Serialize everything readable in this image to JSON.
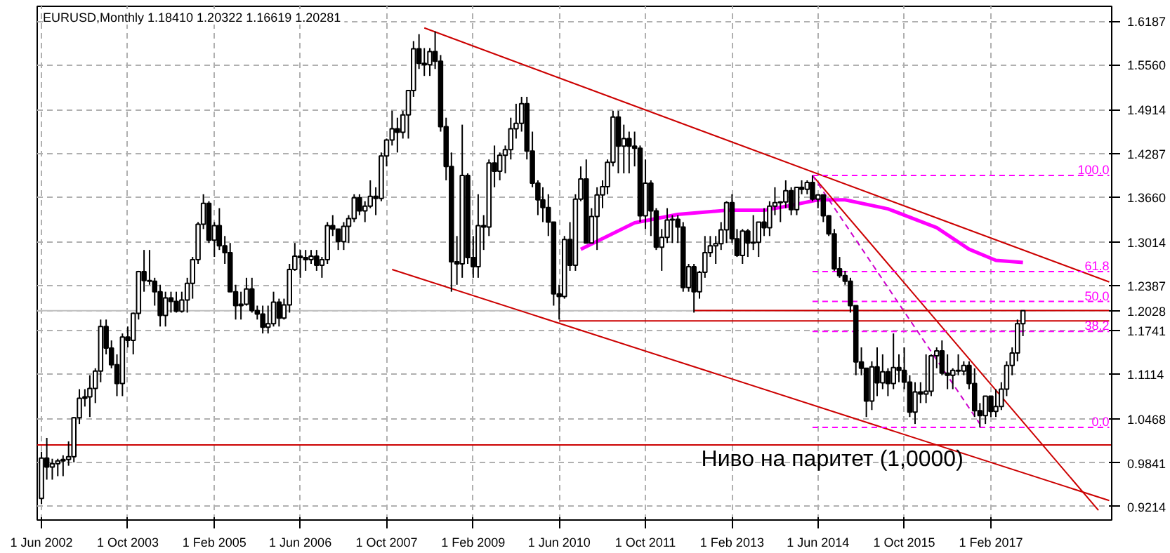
{
  "chart_data": {
    "type": "candlestick",
    "title": "EURUSD,Monthly  1.18410 1.20322 1.16619 1.20281",
    "x": [
      "2002-06",
      "2002-07",
      "2002-08",
      "2002-09",
      "2002-10",
      "2002-11",
      "2002-12",
      "2003-01",
      "2003-02",
      "2003-03",
      "2003-04",
      "2003-05",
      "2003-06",
      "2003-07",
      "2003-08",
      "2003-09",
      "2003-10",
      "2003-11",
      "2003-12",
      "2004-01",
      "2004-02",
      "2004-03",
      "2004-04",
      "2004-05",
      "2004-06",
      "2004-07",
      "2004-08",
      "2004-09",
      "2004-10",
      "2004-11",
      "2004-12",
      "2005-01",
      "2005-02",
      "2005-03",
      "2005-04",
      "2005-05",
      "2005-06",
      "2005-07",
      "2005-08",
      "2005-09",
      "2005-10",
      "2005-11",
      "2005-12",
      "2006-01",
      "2006-02",
      "2006-03",
      "2006-04",
      "2006-05",
      "2006-06",
      "2006-07",
      "2006-08",
      "2006-09",
      "2006-10",
      "2006-11",
      "2006-12",
      "2007-01",
      "2007-02",
      "2007-03",
      "2007-04",
      "2007-05",
      "2007-06",
      "2007-07",
      "2007-08",
      "2007-09",
      "2007-10",
      "2007-11",
      "2007-12",
      "2008-01",
      "2008-02",
      "2008-03",
      "2008-04",
      "2008-05",
      "2008-06",
      "2008-07",
      "2008-08",
      "2008-09",
      "2008-10",
      "2008-11",
      "2008-12",
      "2009-01",
      "2009-02",
      "2009-03",
      "2009-04",
      "2009-05",
      "2009-06",
      "2009-07",
      "2009-08",
      "2009-09",
      "2009-10",
      "2009-11",
      "2009-12",
      "2010-01",
      "2010-02",
      "2010-03",
      "2010-04",
      "2010-05",
      "2010-06",
      "2010-07",
      "2010-08",
      "2010-09",
      "2010-10",
      "2010-11",
      "2010-12",
      "2011-01",
      "2011-02",
      "2011-03",
      "2011-04",
      "2011-05",
      "2011-06",
      "2011-07",
      "2011-08",
      "2011-09",
      "2011-10",
      "2011-11",
      "2011-12",
      "2012-01",
      "2012-02",
      "2012-03",
      "2012-04",
      "2012-05",
      "2012-06",
      "2012-07",
      "2012-08",
      "2012-09",
      "2012-10",
      "2012-11",
      "2012-12",
      "2013-01",
      "2013-02",
      "2013-03",
      "2013-04",
      "2013-05",
      "2013-06",
      "2013-07",
      "2013-08",
      "2013-09",
      "2013-10",
      "2013-11",
      "2013-12",
      "2014-01",
      "2014-02",
      "2014-03",
      "2014-04",
      "2014-05",
      "2014-06",
      "2014-07",
      "2014-08",
      "2014-09",
      "2014-10",
      "2014-11",
      "2014-12",
      "2015-01",
      "2015-02",
      "2015-03",
      "2015-04",
      "2015-05",
      "2015-06",
      "2015-07",
      "2015-08",
      "2015-09",
      "2015-10",
      "2015-11",
      "2015-12",
      "2016-01",
      "2016-02",
      "2016-03",
      "2016-04",
      "2016-05",
      "2016-06",
      "2016-07",
      "2016-08",
      "2016-09",
      "2016-10",
      "2016-11",
      "2016-12",
      "2017-01",
      "2017-02",
      "2017-03",
      "2017-04",
      "2017-05",
      "2017-06",
      "2017-07",
      "2017-08"
    ],
    "ohlc": [
      [
        0.933,
        1.0,
        0.925,
        0.991
      ],
      [
        0.991,
        1.02,
        0.96,
        0.978
      ],
      [
        0.978,
        0.99,
        0.96,
        0.983
      ],
      [
        0.983,
        0.99,
        0.965,
        0.987
      ],
      [
        0.987,
        0.995,
        0.965,
        0.989
      ],
      [
        0.989,
        1.015,
        0.98,
        0.993
      ],
      [
        0.993,
        1.05,
        0.985,
        1.049
      ],
      [
        1.049,
        1.09,
        1.04,
        1.077
      ],
      [
        1.077,
        1.09,
        1.065,
        1.079
      ],
      [
        1.079,
        1.11,
        1.05,
        1.091
      ],
      [
        1.091,
        1.12,
        1.07,
        1.116
      ],
      [
        1.116,
        1.19,
        1.1,
        1.18
      ],
      [
        1.18,
        1.19,
        1.14,
        1.149
      ],
      [
        1.149,
        1.16,
        1.12,
        1.125
      ],
      [
        1.125,
        1.14,
        1.08,
        1.098
      ],
      [
        1.098,
        1.17,
        1.08,
        1.165
      ],
      [
        1.165,
        1.18,
        1.15,
        1.16
      ],
      [
        1.16,
        1.2,
        1.14,
        1.199
      ],
      [
        1.199,
        1.26,
        1.19,
        1.259
      ],
      [
        1.259,
        1.29,
        1.23,
        1.246
      ],
      [
        1.246,
        1.29,
        1.24,
        1.245
      ],
      [
        1.245,
        1.25,
        1.21,
        1.23
      ],
      [
        1.23,
        1.24,
        1.18,
        1.196
      ],
      [
        1.196,
        1.23,
        1.18,
        1.221
      ],
      [
        1.221,
        1.23,
        1.2,
        1.216
      ],
      [
        1.216,
        1.23,
        1.2,
        1.202
      ],
      [
        1.202,
        1.23,
        1.2,
        1.218
      ],
      [
        1.218,
        1.25,
        1.2,
        1.242
      ],
      [
        1.242,
        1.28,
        1.22,
        1.276
      ],
      [
        1.276,
        1.33,
        1.27,
        1.327
      ],
      [
        1.327,
        1.37,
        1.32,
        1.357
      ],
      [
        1.357,
        1.36,
        1.3,
        1.304
      ],
      [
        1.304,
        1.33,
        1.28,
        1.325
      ],
      [
        1.325,
        1.35,
        1.29,
        1.296
      ],
      [
        1.296,
        1.31,
        1.27,
        1.286
      ],
      [
        1.286,
        1.3,
        1.23,
        1.23
      ],
      [
        1.23,
        1.24,
        1.19,
        1.21
      ],
      [
        1.21,
        1.23,
        1.19,
        1.212
      ],
      [
        1.212,
        1.25,
        1.21,
        1.234
      ],
      [
        1.234,
        1.25,
        1.2,
        1.203
      ],
      [
        1.203,
        1.21,
        1.19,
        1.198
      ],
      [
        1.198,
        1.21,
        1.17,
        1.179
      ],
      [
        1.179,
        1.21,
        1.17,
        1.184
      ],
      [
        1.184,
        1.23,
        1.18,
        1.215
      ],
      [
        1.215,
        1.22,
        1.18,
        1.192
      ],
      [
        1.192,
        1.22,
        1.19,
        1.211
      ],
      [
        1.211,
        1.27,
        1.2,
        1.262
      ],
      [
        1.262,
        1.3,
        1.26,
        1.281
      ],
      [
        1.281,
        1.29,
        1.25,
        1.279
      ],
      [
        1.279,
        1.29,
        1.26,
        1.276
      ],
      [
        1.276,
        1.29,
        1.27,
        1.281
      ],
      [
        1.281,
        1.29,
        1.26,
        1.268
      ],
      [
        1.268,
        1.28,
        1.25,
        1.276
      ],
      [
        1.276,
        1.33,
        1.27,
        1.325
      ],
      [
        1.325,
        1.34,
        1.31,
        1.32
      ],
      [
        1.32,
        1.32,
        1.29,
        1.302
      ],
      [
        1.302,
        1.33,
        1.29,
        1.324
      ],
      [
        1.324,
        1.34,
        1.3,
        1.335
      ],
      [
        1.335,
        1.37,
        1.33,
        1.365
      ],
      [
        1.365,
        1.37,
        1.34,
        1.346
      ],
      [
        1.346,
        1.36,
        1.33,
        1.353
      ],
      [
        1.353,
        1.39,
        1.35,
        1.367
      ],
      [
        1.367,
        1.38,
        1.34,
        1.364
      ],
      [
        1.364,
        1.43,
        1.36,
        1.425
      ],
      [
        1.425,
        1.45,
        1.41,
        1.448
      ],
      [
        1.448,
        1.49,
        1.44,
        1.464
      ],
      [
        1.464,
        1.48,
        1.43,
        1.459
      ],
      [
        1.459,
        1.49,
        1.45,
        1.484
      ],
      [
        1.484,
        1.52,
        1.45,
        1.519
      ],
      [
        1.519,
        1.59,
        1.51,
        1.579
      ],
      [
        1.579,
        1.6,
        1.55,
        1.558
      ],
      [
        1.558,
        1.58,
        1.54,
        1.556
      ],
      [
        1.556,
        1.58,
        1.54,
        1.575
      ],
      [
        1.575,
        1.604,
        1.55,
        1.561
      ],
      [
        1.561,
        1.57,
        1.46,
        1.467
      ],
      [
        1.467,
        1.48,
        1.39,
        1.41
      ],
      [
        1.41,
        1.43,
        1.23,
        1.273
      ],
      [
        1.273,
        1.31,
        1.24,
        1.27
      ],
      [
        1.27,
        1.47,
        1.25,
        1.397
      ],
      [
        1.397,
        1.4,
        1.27,
        1.279
      ],
      [
        1.279,
        1.31,
        1.25,
        1.266
      ],
      [
        1.266,
        1.37,
        1.25,
        1.325
      ],
      [
        1.325,
        1.34,
        1.29,
        1.323
      ],
      [
        1.323,
        1.42,
        1.31,
        1.415
      ],
      [
        1.415,
        1.44,
        1.38,
        1.403
      ],
      [
        1.403,
        1.43,
        1.39,
        1.426
      ],
      [
        1.426,
        1.44,
        1.4,
        1.434
      ],
      [
        1.434,
        1.48,
        1.42,
        1.464
      ],
      [
        1.464,
        1.5,
        1.45,
        1.472
      ],
      [
        1.472,
        1.51,
        1.46,
        1.5
      ],
      [
        1.5,
        1.51,
        1.42,
        1.432
      ],
      [
        1.432,
        1.46,
        1.38,
        1.386
      ],
      [
        1.386,
        1.39,
        1.34,
        1.362
      ],
      [
        1.362,
        1.38,
        1.33,
        1.351
      ],
      [
        1.351,
        1.37,
        1.31,
        1.33
      ],
      [
        1.33,
        1.33,
        1.21,
        1.227
      ],
      [
        1.227,
        1.24,
        1.19,
        1.223
      ],
      [
        1.223,
        1.31,
        1.22,
        1.305
      ],
      [
        1.305,
        1.33,
        1.26,
        1.268
      ],
      [
        1.268,
        1.37,
        1.26,
        1.363
      ],
      [
        1.363,
        1.41,
        1.36,
        1.392
      ],
      [
        1.392,
        1.42,
        1.3,
        1.3
      ],
      [
        1.3,
        1.35,
        1.3,
        1.338
      ],
      [
        1.338,
        1.38,
        1.29,
        1.369
      ],
      [
        1.369,
        1.39,
        1.35,
        1.381
      ],
      [
        1.381,
        1.42,
        1.37,
        1.416
      ],
      [
        1.416,
        1.49,
        1.41,
        1.481
      ],
      [
        1.481,
        1.49,
        1.4,
        1.439
      ],
      [
        1.439,
        1.47,
        1.4,
        1.45
      ],
      [
        1.45,
        1.46,
        1.4,
        1.439
      ],
      [
        1.439,
        1.46,
        1.41,
        1.436
      ],
      [
        1.436,
        1.44,
        1.33,
        1.339
      ],
      [
        1.339,
        1.42,
        1.32,
        1.386
      ],
      [
        1.386,
        1.39,
        1.31,
        1.346
      ],
      [
        1.346,
        1.35,
        1.29,
        1.294
      ],
      [
        1.294,
        1.32,
        1.26,
        1.308
      ],
      [
        1.308,
        1.35,
        1.3,
        1.333
      ],
      [
        1.333,
        1.34,
        1.3,
        1.334
      ],
      [
        1.334,
        1.34,
        1.3,
        1.323
      ],
      [
        1.323,
        1.33,
        1.23,
        1.236
      ],
      [
        1.236,
        1.27,
        1.23,
        1.266
      ],
      [
        1.266,
        1.27,
        1.2,
        1.23
      ],
      [
        1.23,
        1.26,
        1.22,
        1.258
      ],
      [
        1.258,
        1.31,
        1.25,
        1.286
      ],
      [
        1.286,
        1.31,
        1.28,
        1.296
      ],
      [
        1.296,
        1.31,
        1.27,
        1.299
      ],
      [
        1.299,
        1.33,
        1.29,
        1.319
      ],
      [
        1.319,
        1.36,
        1.3,
        1.358
      ],
      [
        1.358,
        1.37,
        1.3,
        1.306
      ],
      [
        1.306,
        1.32,
        1.28,
        1.282
      ],
      [
        1.282,
        1.32,
        1.27,
        1.317
      ],
      [
        1.317,
        1.32,
        1.28,
        1.3
      ],
      [
        1.3,
        1.34,
        1.29,
        1.301
      ],
      [
        1.301,
        1.33,
        1.28,
        1.33
      ],
      [
        1.33,
        1.35,
        1.31,
        1.322
      ],
      [
        1.322,
        1.36,
        1.31,
        1.353
      ],
      [
        1.353,
        1.38,
        1.34,
        1.358
      ],
      [
        1.358,
        1.36,
        1.33,
        1.359
      ],
      [
        1.359,
        1.39,
        1.35,
        1.375
      ],
      [
        1.375,
        1.38,
        1.34,
        1.348
      ],
      [
        1.348,
        1.38,
        1.34,
        1.38
      ],
      [
        1.38,
        1.39,
        1.37,
        1.377
      ],
      [
        1.377,
        1.39,
        1.37,
        1.387
      ],
      [
        1.387,
        1.397,
        1.36,
        1.363
      ],
      [
        1.363,
        1.37,
        1.35,
        1.369
      ],
      [
        1.369,
        1.37,
        1.33,
        1.339
      ],
      [
        1.339,
        1.34,
        1.31,
        1.313
      ],
      [
        1.313,
        1.32,
        1.26,
        1.263
      ],
      [
        1.263,
        1.28,
        1.25,
        1.253
      ],
      [
        1.253,
        1.26,
        1.24,
        1.245
      ],
      [
        1.245,
        1.25,
        1.2,
        1.21
      ],
      [
        1.21,
        1.21,
        1.11,
        1.129
      ],
      [
        1.129,
        1.15,
        1.11,
        1.12
      ],
      [
        1.12,
        1.12,
        1.05,
        1.073
      ],
      [
        1.073,
        1.13,
        1.06,
        1.122
      ],
      [
        1.122,
        1.15,
        1.08,
        1.099
      ],
      [
        1.099,
        1.14,
        1.09,
        1.115
      ],
      [
        1.115,
        1.12,
        1.08,
        1.098
      ],
      [
        1.098,
        1.17,
        1.09,
        1.121
      ],
      [
        1.121,
        1.14,
        1.1,
        1.117
      ],
      [
        1.117,
        1.15,
        1.09,
        1.1
      ],
      [
        1.1,
        1.11,
        1.05,
        1.057
      ],
      [
        1.057,
        1.1,
        1.04,
        1.086
      ],
      [
        1.086,
        1.1,
        1.07,
        1.083
      ],
      [
        1.083,
        1.14,
        1.07,
        1.087
      ],
      [
        1.087,
        1.14,
        1.08,
        1.138
      ],
      [
        1.138,
        1.15,
        1.12,
        1.145
      ],
      [
        1.145,
        1.16,
        1.11,
        1.113
      ],
      [
        1.113,
        1.14,
        1.09,
        1.11
      ],
      [
        1.11,
        1.12,
        1.09,
        1.117
      ],
      [
        1.117,
        1.14,
        1.11,
        1.116
      ],
      [
        1.116,
        1.13,
        1.11,
        1.124
      ],
      [
        1.124,
        1.13,
        1.09,
        1.098
      ],
      [
        1.098,
        1.12,
        1.05,
        1.059
      ],
      [
        1.059,
        1.07,
        1.035,
        1.052
      ],
      [
        1.052,
        1.08,
        1.04,
        1.08
      ],
      [
        1.08,
        1.08,
        1.05,
        1.058
      ],
      [
        1.058,
        1.09,
        1.05,
        1.065
      ],
      [
        1.065,
        1.1,
        1.06,
        1.09
      ],
      [
        1.09,
        1.13,
        1.08,
        1.124
      ],
      [
        1.124,
        1.15,
        1.11,
        1.142
      ],
      [
        1.142,
        1.19,
        1.13,
        1.1841
      ],
      [
        1.1841,
        1.20322,
        1.16619,
        1.20281
      ]
    ],
    "series": [
      {
        "type": "line",
        "color": "#ff00ff",
        "line_style": "solid",
        "x": [
          "2010-10",
          "2011-08",
          "2012-04",
          "2013-01",
          "2013-08",
          "2014-01",
          "2014-06",
          "2014-11",
          "2015-07",
          "2016-04",
          "2016-10",
          "2017-03",
          "2017-08"
        ],
        "values": [
          1.291,
          1.329,
          1.341,
          1.347,
          1.347,
          1.354,
          1.362,
          1.362,
          1.349,
          1.322,
          1.291,
          1.275,
          1.272
        ]
      },
      {
        "type": "line",
        "color": "#cc0000",
        "line_style": "solid",
        "x": [
          "2008-05",
          "2018-12"
        ],
        "values": [
          1.609,
          1.244
        ]
      },
      {
        "type": "line",
        "color": "#cc0000",
        "line_style": "solid",
        "x": [
          "2007-11",
          "2018-12"
        ],
        "values": [
          1.262,
          0.93
        ]
      },
      {
        "type": "line",
        "color": "#cc0000",
        "line_style": "solid",
        "x": [
          "2014-05",
          "2018-10"
        ],
        "values": [
          1.397,
          0.916
        ]
      },
      {
        "type": "line",
        "color": "#cc00cc",
        "line_style": "dashed",
        "x": [
          "2014-05",
          "2016-12"
        ],
        "values": [
          1.397,
          1.04
        ]
      },
      {
        "type": "line",
        "color": "#cc0000",
        "line_style": "solid",
        "x": [
          "2012-07",
          "2018-12"
        ],
        "values": [
          1.203,
          1.203
        ]
      },
      {
        "type": "line",
        "color": "#cc0000",
        "line_style": "solid",
        "x": [
          "2010-06",
          "2018-12"
        ],
        "values": [
          1.188,
          1.188
        ]
      },
      {
        "type": "line",
        "name": "100.0",
        "color": "#ff00ff",
        "line_style": "dashed",
        "x": [
          "2014-05",
          "2018-12"
        ],
        "values": [
          1.397,
          1.397
        ]
      },
      {
        "type": "line",
        "name": "61.8",
        "color": "#ff00ff",
        "line_style": "dashed",
        "x": [
          "2014-05",
          "2018-12"
        ],
        "values": [
          1.259,
          1.259
        ]
      },
      {
        "type": "line",
        "name": "50.0",
        "color": "#ff00ff",
        "line_style": "dashed",
        "x": [
          "2014-05",
          "2018-12"
        ],
        "values": [
          1.216,
          1.216
        ]
      },
      {
        "type": "line",
        "name": "38.2",
        "color": "#ff00ff",
        "line_style": "dashed",
        "x": [
          "2014-05",
          "2018-12"
        ],
        "values": [
          1.173,
          1.173
        ]
      },
      {
        "type": "line",
        "name": "0.0",
        "color": "#ff00ff",
        "line_style": "dashed",
        "x": [
          "2014-05",
          "2018-12"
        ],
        "values": [
          1.035,
          1.035
        ]
      }
    ],
    "ref_lines": [
      {
        "axis": "y",
        "value": 1.01,
        "label": "Ниво на паритет (1,0000)",
        "color": "#cc0000"
      },
      {
        "axis": "y",
        "value": 1.2028,
        "color": "#c0c0c0"
      }
    ],
    "xlim": [
      "2002-05-08",
      "2018-12-15"
    ],
    "xticks": [
      {
        "value": "2002-06",
        "label": "1 Jun 2002"
      },
      {
        "value": "2003-10",
        "label": "1 Oct 2003"
      },
      {
        "value": "2005-02",
        "label": "1 Feb 2005"
      },
      {
        "value": "2006-06",
        "label": "1 Jun 2006"
      },
      {
        "value": "2007-10",
        "label": "1 Oct 2007"
      },
      {
        "value": "2009-02",
        "label": "1 Feb 2009"
      },
      {
        "value": "2010-06",
        "label": "1 Jun 2010"
      },
      {
        "value": "2011-10",
        "label": "1 Oct 2011"
      },
      {
        "value": "2013-02",
        "label": "1 Feb 2013"
      },
      {
        "value": "2014-06",
        "label": "1 Jun 2014"
      },
      {
        "value": "2015-10",
        "label": "1 Oct 2015"
      },
      {
        "value": "2017-02",
        "label": "1 Feb 2017"
      }
    ],
    "ylim": [
      0.902,
      1.64
    ],
    "yticks": [
      1.6187,
      {
        "value": 1.556,
        "label": "1.5560"
      },
      1.4914,
      1.4287,
      {
        "value": 1.366,
        "label": "1.3660"
      },
      1.3014,
      1.2387,
      1.2028,
      1.1741,
      1.1114,
      1.0468,
      0.9841,
      0.9214
    ],
    "grid": true
  }
}
